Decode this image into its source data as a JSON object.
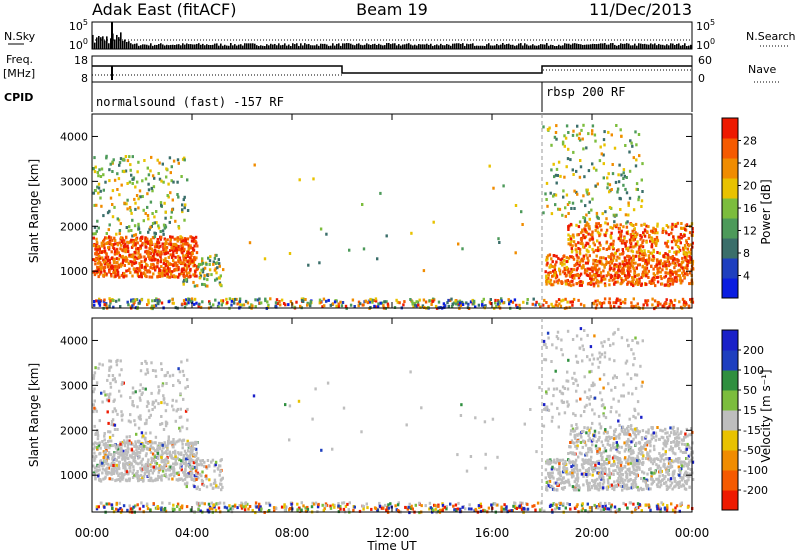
{
  "header": {
    "left": "Adak East (fitACF)",
    "center": "Beam 19",
    "right": "11/Dec/2013"
  },
  "panel_labels": {
    "nsky": "N.Sky",
    "nsearch": "N.Search",
    "freq": "Freq.",
    "freq_unit": "[MHz]",
    "nave": "Nave",
    "cpid": "CPID"
  },
  "small_axes": {
    "nsky_ticks": [
      "10^5",
      "10^0"
    ],
    "nsearch_ticks": [
      "10^5",
      "10^0"
    ],
    "freq_ticks": [
      "18",
      "8"
    ],
    "nave_ticks": [
      "60",
      "0"
    ]
  },
  "cpid_labels": [
    {
      "text": "normalsound (fast) -157 RF",
      "start_hour": 0
    },
    {
      "text": "rbsp 200 RF",
      "start_hour": 18
    }
  ],
  "colors": {
    "power": [
      "#0a1de0",
      "#1e3fbf",
      "#3a6e6a",
      "#4d9a5a",
      "#7cbd3d",
      "#e8c200",
      "#f08c00",
      "#f55a00",
      "#ee1a00"
    ],
    "velocity": [
      "#ee1a00",
      "#f55a00",
      "#f08c00",
      "#e8c200",
      "#bebebe",
      "#7cbd3d",
      "#2f8f3f",
      "#1e3fbf",
      "#1a20c8"
    ]
  },
  "chart_data": [
    {
      "type": "heatmap",
      "name": "power",
      "ylabel": "Slant Range [km]",
      "yticks": [
        1000,
        2000,
        3000,
        4000
      ],
      "ylim": [
        180,
        4500
      ],
      "colorbar_label": "Power [dB]",
      "colorbar_ticks": [
        4,
        8,
        12,
        16,
        20,
        24,
        28
      ],
      "colorbar_range": [
        0,
        32
      ]
    },
    {
      "type": "heatmap",
      "name": "velocity",
      "ylabel": "Slant Range [km]",
      "yticks": [
        1000,
        2000,
        3000,
        4000
      ],
      "ylim": [
        180,
        4500
      ],
      "colorbar_label": "Velocity [m s⁻¹]",
      "colorbar_ticks": [
        "-200",
        "-100",
        "-50",
        "-15",
        "15",
        "50",
        "100",
        "200"
      ]
    }
  ],
  "x_axis": {
    "label": "Time UT",
    "ticks": [
      "00:00",
      "04:00",
      "08:00",
      "12:00",
      "16:00",
      "20:00",
      "00:00"
    ],
    "xlim": [
      0,
      24
    ]
  }
}
